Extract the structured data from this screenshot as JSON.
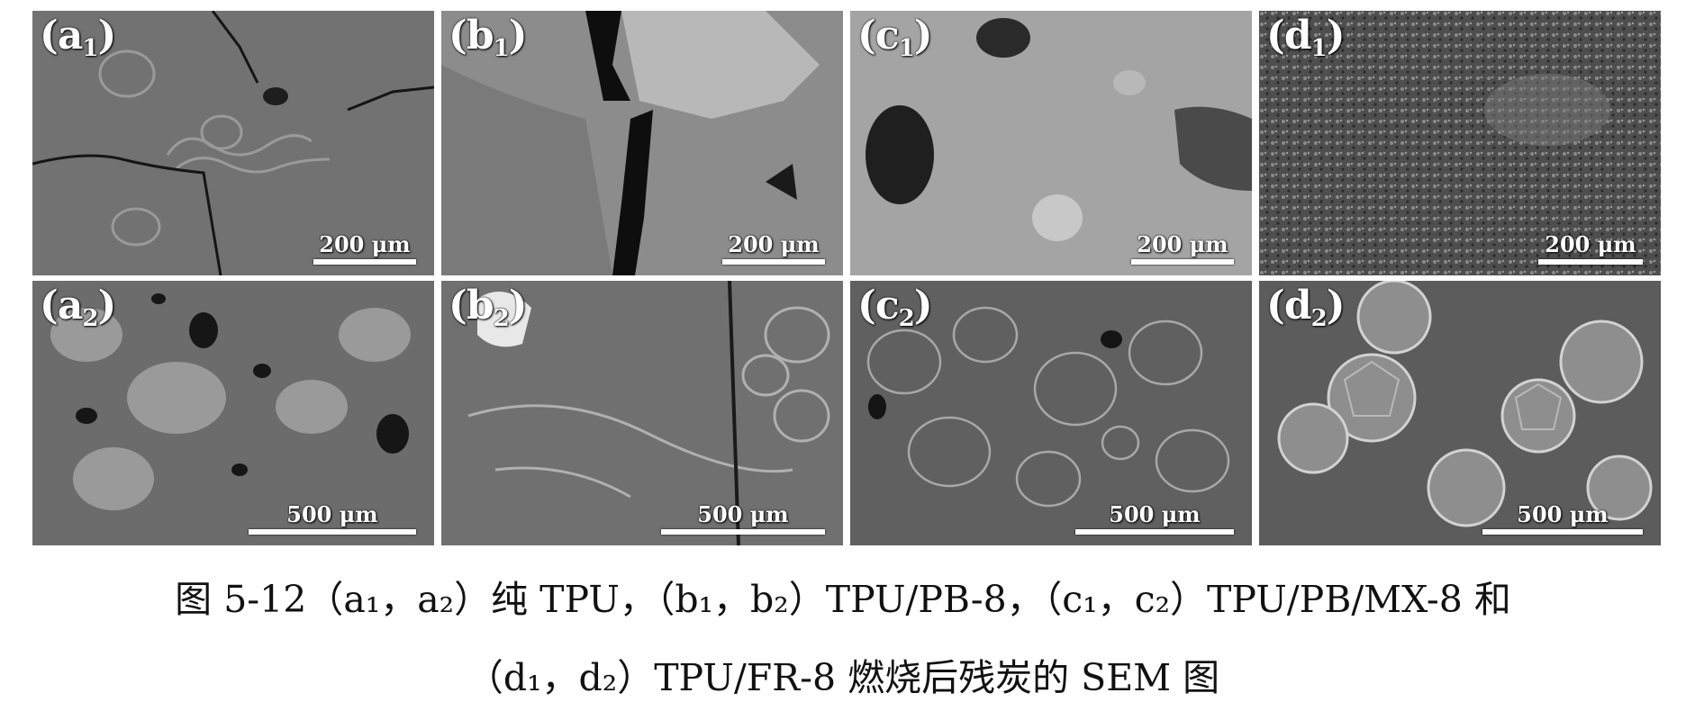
{
  "panels": [
    {
      "letter": "a",
      "sub": "1",
      "scale": "200 μm",
      "fill": "#707070"
    },
    {
      "letter": "b",
      "sub": "1",
      "scale": "200 μm",
      "fill": "#8a8a8a"
    },
    {
      "letter": "c",
      "sub": "1",
      "scale": "200 μm",
      "fill": "#a6a6a6"
    },
    {
      "letter": "d",
      "sub": "1",
      "scale": "200 μm",
      "fill": "#5a5a5a"
    },
    {
      "letter": "a",
      "sub": "2",
      "scale": "500 μm",
      "fill": "#6a6a6a"
    },
    {
      "letter": "b",
      "sub": "2",
      "scale": "500 μm",
      "fill": "#6e6e6e"
    },
    {
      "letter": "c",
      "sub": "2",
      "scale": "500 μm",
      "fill": "#626262"
    },
    {
      "letter": "d",
      "sub": "2",
      "scale": "500 μm",
      "fill": "#5e5e5e"
    }
  ],
  "caption": {
    "line1": "图 5-12（a₁，a₂）纯 TPU，（b₁，b₂）TPU/PB-8，（c₁，c₂）TPU/PB/MX-8 和",
    "line2": "（d₁，d₂）TPU/FR-8 燃烧后残炭的 SEM 图"
  }
}
